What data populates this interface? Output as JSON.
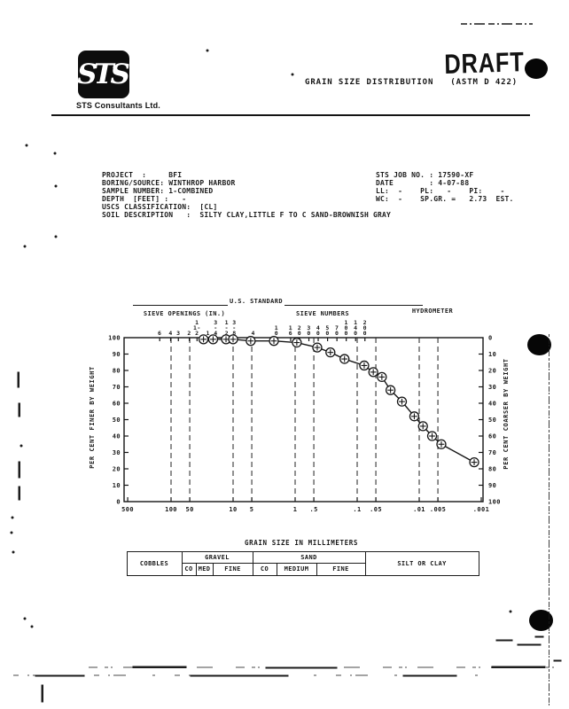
{
  "page": {
    "logo_text": "STS",
    "logo_caption": "STS Consultants Ltd.",
    "stamp": "DRAFT",
    "title_line": "GRAIN SIZE DISTRIBUTION   (ASTM D 422)"
  },
  "info": {
    "left_lines": [
      "PROJECT  :     BFI",
      "BORING/SOURCE: WINTHROP HARBOR",
      "SAMPLE NUMBER: 1-COMBINED",
      "DEPTH  [FEET] :   -",
      "USCS CLASSIFICATION:  [CL]",
      "SOIL DESCRIPTION   :  SILTY CLAY,LITTLE F TO C SAND-BROWNISH GRAY"
    ],
    "right_lines": [
      "STS JOB NO. : 17590-XF",
      "DATE        : 4-07-88",
      "LL:  -    PL:   -    PI:    -",
      "WC:  -    SP.GR. =   2.73  EST."
    ]
  },
  "chart_data": {
    "type": "line",
    "title": "GRAIN SIZE DISTRIBUTION (ASTM D 422)",
    "x_axis": {
      "label": "GRAIN SIZE IN MILLIMETERS",
      "scale": "log",
      "range_mm": [
        500,
        0.001
      ],
      "tick_values": [
        500,
        100,
        50,
        10,
        5,
        1,
        0.5,
        0.1,
        0.05,
        0.01,
        0.005,
        0.001
      ],
      "tick_labels": [
        "500",
        "100",
        "50",
        "10",
        "5",
        "1",
        ".5",
        ".1",
        ".05",
        ".01",
        ".005",
        ".001"
      ],
      "gridline_values": [
        100,
        50,
        10,
        5,
        1,
        0.5,
        0.1,
        0.05,
        0.01,
        0.005
      ]
    },
    "y_axis_left": {
      "label": "PER CENT FINER BY WEIGHT",
      "ticks": [
        100,
        90,
        80,
        70,
        60,
        50,
        40,
        30,
        20,
        10,
        0
      ],
      "lim": [
        0,
        100
      ]
    },
    "y_axis_right": {
      "label": "PER CENT COARSER BY WEIGHT",
      "ticks": [
        0,
        10,
        20,
        30,
        40,
        50,
        60,
        70,
        80,
        90,
        100
      ]
    },
    "top_scales": {
      "group_label": "U.S. STANDARD",
      "openings_label": "SIEVE OPENINGS (IN.)",
      "numbers_label": "SIEVE NUMBERS",
      "hydrometer_label": "HYDROMETER",
      "sieve_openings_in": [
        {
          "label": "6",
          "mm": 152.4,
          "stack": [
            "6"
          ]
        },
        {
          "label": "4",
          "mm": 101.6,
          "stack": [
            "4"
          ]
        },
        {
          "label": "3",
          "mm": 76.2,
          "stack": [
            "3"
          ]
        },
        {
          "label": "2",
          "mm": 50.8,
          "stack": [
            "2"
          ]
        },
        {
          "label": "1-1/2",
          "mm": 38.1,
          "stack": [
            "1",
            "1-",
            "2"
          ]
        },
        {
          "label": "1",
          "mm": 25.4,
          "stack": [
            "1"
          ]
        },
        {
          "label": "3/4",
          "mm": 19.05,
          "stack": [
            "3",
            "-",
            "4"
          ]
        },
        {
          "label": "1/2",
          "mm": 12.7,
          "stack": [
            "1",
            "-",
            "2"
          ]
        },
        {
          "label": "3/8",
          "mm": 9.53,
          "stack": [
            "3",
            "-",
            "8"
          ]
        }
      ],
      "sieve_numbers": [
        {
          "label": "4",
          "mm": 4.75,
          "stack": [
            "4"
          ]
        },
        {
          "label": "10",
          "mm": 2.0,
          "stack": [
            "1",
            "0"
          ]
        },
        {
          "label": "16",
          "mm": 1.18,
          "stack": [
            "1",
            "6"
          ]
        },
        {
          "label": "20",
          "mm": 0.85,
          "stack": [
            "2",
            "0"
          ]
        },
        {
          "label": "30",
          "mm": 0.6,
          "stack": [
            "3",
            "0"
          ]
        },
        {
          "label": "40",
          "mm": 0.425,
          "stack": [
            "4",
            "0"
          ]
        },
        {
          "label": "50",
          "mm": 0.3,
          "stack": [
            "5",
            "0"
          ]
        },
        {
          "label": "70",
          "mm": 0.212,
          "stack": [
            "7",
            "0"
          ]
        },
        {
          "label": "100",
          "mm": 0.15,
          "stack": [
            "1",
            "0",
            "0"
          ]
        },
        {
          "label": "140",
          "mm": 0.106,
          "stack": [
            "1",
            "4",
            "0"
          ]
        },
        {
          "label": "200",
          "mm": 0.075,
          "stack": [
            "2",
            "0",
            "0"
          ]
        }
      ]
    },
    "series": [
      {
        "name": "SAMPLE 1-COMBINED",
        "marker": "circle-plus",
        "points_mm_percentfiner": [
          [
            30,
            99
          ],
          [
            21,
            99
          ],
          [
            13,
            99
          ],
          [
            10,
            99
          ],
          [
            5.2,
            98
          ],
          [
            2.2,
            98
          ],
          [
            0.94,
            97
          ],
          [
            0.44,
            94
          ],
          [
            0.27,
            91
          ],
          [
            0.16,
            87
          ],
          [
            0.077,
            83
          ],
          [
            0.055,
            79
          ],
          [
            0.04,
            76
          ],
          [
            0.029,
            68
          ],
          [
            0.019,
            61
          ],
          [
            0.012,
            52
          ],
          [
            0.0087,
            46
          ],
          [
            0.0062,
            40
          ],
          [
            0.0044,
            35
          ],
          [
            0.0013,
            24
          ]
        ]
      }
    ]
  },
  "table": {
    "title": "GRAIN SIZE IN MILLIMETERS",
    "cobbles": "COBBLES",
    "gravel": {
      "label": "GRAVEL",
      "subs": [
        "CO",
        "MED",
        "FINE"
      ]
    },
    "sand": {
      "label": "SAND",
      "subs": [
        "CO",
        "MEDIUM",
        "FINE"
      ]
    },
    "silt": "SILT OR CLAY"
  }
}
